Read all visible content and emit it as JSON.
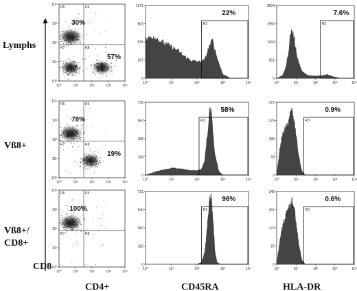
{
  "row_labels": [
    "Lymphs",
    "Vß8+",
    "Vß8+/",
    "CD8+"
  ],
  "column_labels": {
    "dot": "CD4+",
    "cd45": "CD45RA",
    "hla": "HLA-DR"
  },
  "y_axis_label": "CD8",
  "region_labels": {
    "q_ul": "R5",
    "q_ur": "R6",
    "q_ll": "R7",
    "q_lr": "R8",
    "gate": "R3"
  },
  "dot_ticks": [
    "10⁰",
    "10¹",
    "10²",
    "10³",
    "10⁴"
  ],
  "colors": {
    "histogram_fill": "#444444",
    "dot_density": "#1a1a1a",
    "frame": "#333333"
  },
  "chart_data": [
    {
      "type": "scatter",
      "panel": "Lymphs CD4+ vs CD8",
      "xlabel": "CD4+",
      "ylabel": "CD8",
      "xscale": "log",
      "yscale": "log",
      "xlim": [
        1,
        10000
      ],
      "ylim": [
        1,
        10000
      ],
      "quadrant_percentages": {
        "upper_left": "30%",
        "lower_right": "57%"
      },
      "population_centers": [
        {
          "x": 5,
          "y": 200
        },
        {
          "x": 400,
          "y": 5
        },
        {
          "x": 5,
          "y": 5
        }
      ]
    },
    {
      "type": "area",
      "panel": "Lymphs CD45RA",
      "xlabel": "CD45RA",
      "xscale": "log",
      "xlim": [
        1,
        10000
      ],
      "yticks": [
        "0",
        "267",
        "535",
        "803",
        "1071"
      ],
      "ylim": [
        0,
        1071
      ],
      "gate_label": "R3",
      "gate_percent": "22%",
      "gate_range": [
        150,
        10000
      ],
      "curve": {
        "x": [
          1,
          2,
          4,
          8,
          16,
          30,
          60,
          120,
          200,
          300,
          400,
          600,
          1000,
          2000
        ],
        "y": [
          560,
          620,
          540,
          480,
          420,
          330,
          260,
          240,
          270,
          470,
          560,
          300,
          60,
          0
        ]
      }
    },
    {
      "type": "area",
      "panel": "Lymphs HLA-DR",
      "xlabel": "HLA-DR",
      "xscale": "log",
      "xlim": [
        1,
        10000
      ],
      "yticks": [
        "0",
        "651",
        "1302",
        "1953",
        "2604"
      ],
      "ylim": [
        0,
        2604
      ],
      "gate_label": "R3",
      "gate_percent": "7.6%",
      "gate_range": [
        180,
        10000
      ],
      "curve": {
        "x": [
          1,
          2,
          3,
          4,
          5,
          6,
          8,
          12,
          20,
          40,
          80,
          200,
          400,
          800,
          2000
        ],
        "y": [
          0,
          100,
          400,
          900,
          1500,
          1750,
          1400,
          700,
          250,
          100,
          80,
          90,
          140,
          60,
          0
        ]
      }
    },
    {
      "type": "scatter",
      "panel": "Vß8+ CD4+ vs CD8",
      "xlabel": "CD4+",
      "ylabel": "CD8",
      "xscale": "log",
      "yscale": "log",
      "xlim": [
        1,
        10000
      ],
      "ylim": [
        1,
        10000
      ],
      "quadrant_percentages": {
        "upper_left": "78%",
        "lower_right": "19%"
      },
      "population_centers": [
        {
          "x": 5,
          "y": 200
        },
        {
          "x": 80,
          "y": 8
        }
      ]
    },
    {
      "type": "area",
      "panel": "Vß8+ CD45RA",
      "xlabel": "CD45RA",
      "xscale": "log",
      "xlim": [
        1,
        10000
      ],
      "yticks": [
        "0",
        "184",
        "368",
        "552",
        "736"
      ],
      "ylim": [
        0,
        736
      ],
      "gate_label": "R3",
      "gate_percent": "58%",
      "gate_range": [
        120,
        10000
      ],
      "curve": {
        "x": [
          1,
          3,
          10,
          30,
          60,
          100,
          150,
          200,
          250,
          300,
          350,
          400,
          500,
          700,
          1000
        ],
        "y": [
          0,
          40,
          70,
          60,
          45,
          45,
          60,
          150,
          400,
          620,
          650,
          500,
          200,
          40,
          0
        ]
      }
    },
    {
      "type": "area",
      "panel": "Vß8+ HLA-DR",
      "xlabel": "HLA-DR",
      "xscale": "log",
      "xlim": [
        1,
        10000
      ],
      "yticks": [
        "0",
        "93",
        "186",
        "279",
        "372"
      ],
      "ylim": [
        0,
        372
      ],
      "gate_label": "R3",
      "gate_percent": "0.9%",
      "gate_range": [
        25,
        10000
      ],
      "curve": {
        "x": [
          1,
          1.5,
          2,
          3,
          4,
          5,
          6,
          8,
          10,
          14,
          20,
          30
        ],
        "y": [
          0,
          140,
          200,
          240,
          270,
          300,
          320,
          280,
          200,
          90,
          20,
          0
        ]
      }
    },
    {
      "type": "scatter",
      "panel": "Vß8+/CD8+ CD4+ vs CD8",
      "xlabel": "CD4+",
      "ylabel": "CD8",
      "xscale": "log",
      "yscale": "log",
      "xlim": [
        1,
        10000
      ],
      "ylim": [
        1,
        10000
      ],
      "quadrant_percentages": {
        "upper_left": "100%"
      },
      "population_centers": [
        {
          "x": 5,
          "y": 200
        }
      ]
    },
    {
      "type": "area",
      "panel": "Vß8+/CD8+ CD45RA",
      "xlabel": "CD45RA",
      "xscale": "log",
      "xlim": [
        1,
        10000
      ],
      "yticks": [
        "0",
        "180",
        "360",
        "540",
        "721"
      ],
      "ylim": [
        0,
        721
      ],
      "gate_label": "R3",
      "gate_percent": "96%",
      "gate_range": [
        150,
        10000
      ],
      "curve": {
        "x": [
          100,
          150,
          200,
          250,
          300,
          330,
          360,
          400,
          450,
          500,
          600,
          800
        ],
        "y": [
          0,
          20,
          120,
          360,
          620,
          660,
          640,
          520,
          300,
          120,
          20,
          0
        ]
      }
    },
    {
      "type": "area",
      "panel": "Vß8+/CD8+ HLA-DR",
      "xlabel": "HLA-DR",
      "xscale": "log",
      "xlim": [
        1,
        10000
      ],
      "yticks": [
        "0",
        "87",
        "174",
        "261",
        "348"
      ],
      "ylim": [
        0,
        348
      ],
      "gate_label": "R3",
      "gate_percent": "0.6%",
      "gate_range": [
        25,
        10000
      ],
      "curve": {
        "x": [
          1,
          1.5,
          2,
          3,
          4,
          5,
          6,
          8,
          10,
          14,
          20,
          30
        ],
        "y": [
          0,
          120,
          180,
          230,
          260,
          280,
          300,
          270,
          200,
          90,
          20,
          0
        ]
      }
    }
  ]
}
